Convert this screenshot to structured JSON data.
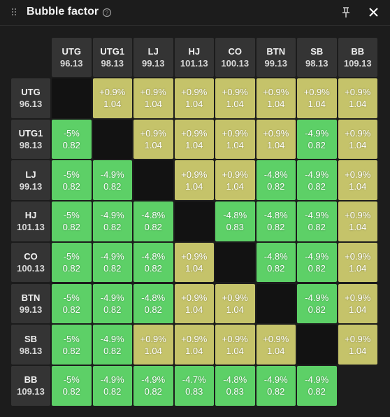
{
  "header": {
    "title": "Bubble factor"
  },
  "positions": [
    {
      "name": "UTG",
      "stack": "96.13"
    },
    {
      "name": "UTG1",
      "stack": "98.13"
    },
    {
      "name": "LJ",
      "stack": "99.13"
    },
    {
      "name": "HJ",
      "stack": "101.13"
    },
    {
      "name": "CO",
      "stack": "100.13"
    },
    {
      "name": "BTN",
      "stack": "99.13"
    },
    {
      "name": "SB",
      "stack": "98.13"
    },
    {
      "name": "BB",
      "stack": "109.13"
    }
  ],
  "table": {
    "rows": [
      [
        null,
        {
          "change": "+0.9%",
          "factor": "1.04"
        },
        {
          "change": "+0.9%",
          "factor": "1.04"
        },
        {
          "change": "+0.9%",
          "factor": "1.04"
        },
        {
          "change": "+0.9%",
          "factor": "1.04"
        },
        {
          "change": "+0.9%",
          "factor": "1.04"
        },
        {
          "change": "+0.9%",
          "factor": "1.04"
        },
        {
          "change": "+0.9%",
          "factor": "1.04"
        }
      ],
      [
        {
          "change": "-5%",
          "factor": "0.82"
        },
        null,
        {
          "change": "+0.9%",
          "factor": "1.04"
        },
        {
          "change": "+0.9%",
          "factor": "1.04"
        },
        {
          "change": "+0.9%",
          "factor": "1.04"
        },
        {
          "change": "+0.9%",
          "factor": "1.04"
        },
        {
          "change": "-4.9%",
          "factor": "0.82"
        },
        {
          "change": "+0.9%",
          "factor": "1.04"
        }
      ],
      [
        {
          "change": "-5%",
          "factor": "0.82"
        },
        {
          "change": "-4.9%",
          "factor": "0.82"
        },
        null,
        {
          "change": "+0.9%",
          "factor": "1.04"
        },
        {
          "change": "+0.9%",
          "factor": "1.04"
        },
        {
          "change": "-4.8%",
          "factor": "0.82"
        },
        {
          "change": "-4.9%",
          "factor": "0.82"
        },
        {
          "change": "+0.9%",
          "factor": "1.04"
        }
      ],
      [
        {
          "change": "-5%",
          "factor": "0.82"
        },
        {
          "change": "-4.9%",
          "factor": "0.82"
        },
        {
          "change": "-4.8%",
          "factor": "0.82"
        },
        null,
        {
          "change": "-4.8%",
          "factor": "0.83"
        },
        {
          "change": "-4.8%",
          "factor": "0.82"
        },
        {
          "change": "-4.9%",
          "factor": "0.82"
        },
        {
          "change": "+0.9%",
          "factor": "1.04"
        }
      ],
      [
        {
          "change": "-5%",
          "factor": "0.82"
        },
        {
          "change": "-4.9%",
          "factor": "0.82"
        },
        {
          "change": "-4.8%",
          "factor": "0.82"
        },
        {
          "change": "+0.9%",
          "factor": "1.04"
        },
        null,
        {
          "change": "-4.8%",
          "factor": "0.82"
        },
        {
          "change": "-4.9%",
          "factor": "0.82"
        },
        {
          "change": "+0.9%",
          "factor": "1.04"
        }
      ],
      [
        {
          "change": "-5%",
          "factor": "0.82"
        },
        {
          "change": "-4.9%",
          "factor": "0.82"
        },
        {
          "change": "-4.8%",
          "factor": "0.82"
        },
        {
          "change": "+0.9%",
          "factor": "1.04"
        },
        {
          "change": "+0.9%",
          "factor": "1.04"
        },
        null,
        {
          "change": "-4.9%",
          "factor": "0.82"
        },
        {
          "change": "+0.9%",
          "factor": "1.04"
        }
      ],
      [
        {
          "change": "-5%",
          "factor": "0.82"
        },
        {
          "change": "-4.9%",
          "factor": "0.82"
        },
        {
          "change": "+0.9%",
          "factor": "1.04"
        },
        {
          "change": "+0.9%",
          "factor": "1.04"
        },
        {
          "change": "+0.9%",
          "factor": "1.04"
        },
        {
          "change": "+0.9%",
          "factor": "1.04"
        },
        null,
        {
          "change": "+0.9%",
          "factor": "1.04"
        }
      ],
      [
        {
          "change": "-5%",
          "factor": "0.82"
        },
        {
          "change": "-4.9%",
          "factor": "0.82"
        },
        {
          "change": "-4.9%",
          "factor": "0.82"
        },
        {
          "change": "-4.7%",
          "factor": "0.83"
        },
        {
          "change": "-4.8%",
          "factor": "0.83"
        },
        {
          "change": "-4.9%",
          "factor": "0.82"
        },
        {
          "change": "-4.9%",
          "factor": "0.82"
        },
        null
      ]
    ]
  }
}
